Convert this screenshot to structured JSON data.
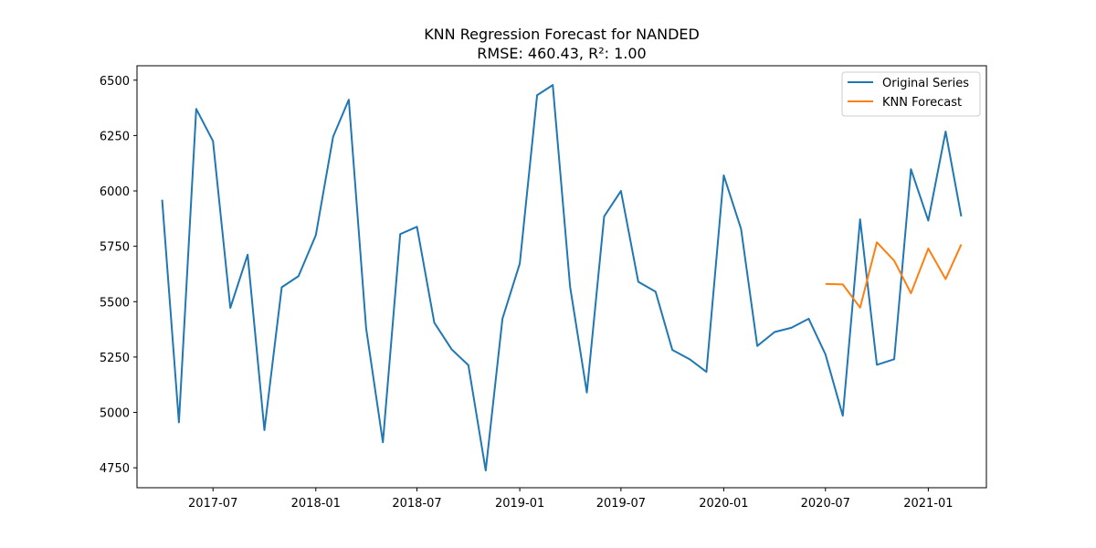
{
  "chart_data": {
    "type": "line",
    "title": "KNN Regression Forecast for NANDED",
    "subtitle": "RMSE: 460.43, R²: 1.00",
    "xlabel": "",
    "ylabel": "",
    "xlim": [
      "2017-02-15",
      "2021-04-15"
    ],
    "ylim": [
      4660,
      6565
    ],
    "yticks": [
      4750,
      5000,
      5250,
      5500,
      5750,
      6000,
      6250,
      6500
    ],
    "xticks": [
      {
        "date": "2017-07-01",
        "label": "2017-07"
      },
      {
        "date": "2018-01-01",
        "label": "2018-01"
      },
      {
        "date": "2018-07-01",
        "label": "2018-07"
      },
      {
        "date": "2019-01-01",
        "label": "2019-01"
      },
      {
        "date": "2019-07-01",
        "label": "2019-07"
      },
      {
        "date": "2020-01-01",
        "label": "2020-01"
      },
      {
        "date": "2020-07-01",
        "label": "2020-07"
      },
      {
        "date": "2021-01-01",
        "label": "2021-01"
      }
    ],
    "grid": false,
    "legend_position": "top-right",
    "series": [
      {
        "name": "Original Series",
        "color": "#1f77b4",
        "x": [
          "2017-04-01",
          "2017-05-01",
          "2017-06-01",
          "2017-07-01",
          "2017-08-01",
          "2017-09-01",
          "2017-10-01",
          "2017-11-01",
          "2017-12-01",
          "2018-01-01",
          "2018-02-01",
          "2018-03-01",
          "2018-04-01",
          "2018-05-01",
          "2018-06-01",
          "2018-07-01",
          "2018-08-01",
          "2018-09-01",
          "2018-10-01",
          "2018-11-01",
          "2018-12-01",
          "2019-01-01",
          "2019-02-01",
          "2019-03-01",
          "2019-04-01",
          "2019-05-01",
          "2019-06-01",
          "2019-07-01",
          "2019-08-01",
          "2019-09-01",
          "2019-10-01",
          "2019-11-01",
          "2019-12-01",
          "2020-01-01",
          "2020-02-01",
          "2020-03-01",
          "2020-04-01",
          "2020-05-01",
          "2020-06-01",
          "2020-07-01",
          "2020-08-01",
          "2020-09-01",
          "2020-10-01",
          "2020-11-01",
          "2020-12-01",
          "2021-01-01",
          "2021-02-01",
          "2021-03-01"
        ],
        "values": [
          5960,
          4955,
          6370,
          6225,
          5472,
          5712,
          4920,
          5565,
          5615,
          5800,
          6245,
          6412,
          5380,
          4865,
          5805,
          5838,
          5405,
          5285,
          5213,
          4738,
          5423,
          5672,
          6432,
          6478,
          5568,
          5090,
          5885,
          6000,
          5590,
          5545,
          5282,
          5240,
          5183,
          6070,
          5828,
          5300,
          5363,
          5382,
          5423,
          5262,
          4985,
          5872,
          5215,
          5240,
          6098,
          5866,
          6268,
          5885
        ]
      },
      {
        "name": "KNN Forecast",
        "color": "#ff7f0e",
        "x": [
          "2020-07-01",
          "2020-08-01",
          "2020-09-01",
          "2020-10-01",
          "2020-11-01",
          "2020-12-01",
          "2021-01-01",
          "2021-02-01",
          "2021-03-01"
        ],
        "values": [
          5580,
          5578,
          5473,
          5768,
          5685,
          5538,
          5740,
          5602,
          5758
        ]
      }
    ]
  }
}
